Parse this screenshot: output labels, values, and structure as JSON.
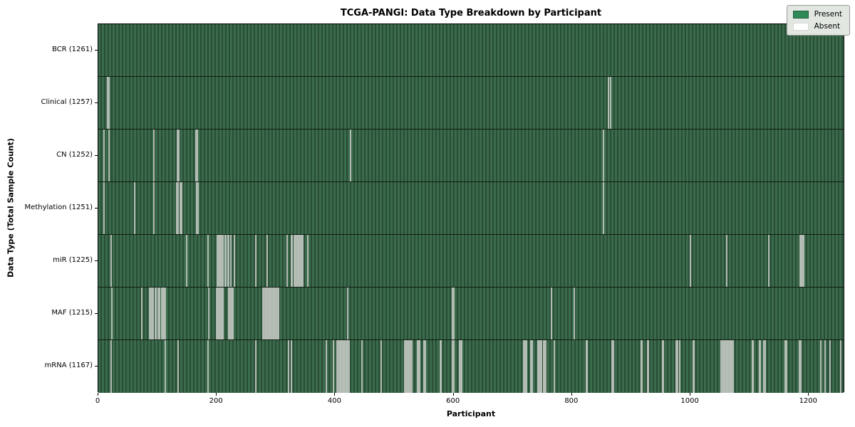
{
  "figure": {
    "title": "TCGA-PANGI: Data Type Breakdown by Participant",
    "xlabel": "Participant",
    "ylabel": "Data Type (Total Sample Count)"
  },
  "legend": {
    "present_label": "Present",
    "absent_label": "Absent",
    "present_color": "#2e8b57",
    "absent_color": "#ffffff"
  },
  "chart_data": {
    "type": "heatmap",
    "title": "TCGA-PANGI: Data Type Breakdown by Participant",
    "xlabel": "Participant",
    "ylabel": "Data Type (Total Sample Count)",
    "x_range": [
      0,
      1261
    ],
    "x_ticks": [
      0,
      200,
      400,
      600,
      800,
      1000,
      1200
    ],
    "total_participants": 1261,
    "grid": false,
    "legend_position": "upper right",
    "present_color": "#2e8b57",
    "absent_color": "#ffffff",
    "rows": [
      {
        "label": "BCR (1261)",
        "name": "BCR",
        "present_count": 1261,
        "absent_count": 0,
        "absent_positions": []
      },
      {
        "label": "Clinical (1257)",
        "name": "Clinical",
        "present_count": 1257,
        "absent_count": 4,
        "absent_positions": [
          15,
          17,
          862,
          865
        ]
      },
      {
        "label": "CN (1252)",
        "name": "CN",
        "present_count": 1252,
        "absent_count": 9,
        "absent_positions": [
          8,
          17,
          93,
          133,
          135,
          164,
          166,
          426,
          854
        ]
      },
      {
        "label": "Methylation (1251)",
        "name": "Methylation",
        "present_count": 1251,
        "absent_count": 10,
        "absent_positions": [
          8,
          60,
          93,
          132,
          134,
          138,
          140,
          165,
          167,
          854
        ]
      },
      {
        "label": "miR (1225)",
        "name": "miR",
        "present_count": 1225,
        "absent_count": 36,
        "absent_positions": [
          20,
          148,
          184,
          200,
          202,
          204,
          206,
          208,
          210,
          213,
          215,
          218,
          220,
          223,
          229,
          265,
          285,
          318,
          325,
          327,
          330,
          332,
          334,
          336,
          339,
          341,
          343,
          345,
          353,
          1001,
          1062,
          1133,
          1186,
          1188,
          1190,
          1192
        ]
      },
      {
        "label": "MAF (1215)",
        "name": "MAF",
        "present_count": 1215,
        "absent_count": 46,
        "absent_positions": [
          22,
          72,
          86,
          88,
          90,
          92,
          95,
          97,
          100,
          102,
          106,
          108,
          110,
          112,
          186,
          199,
          201,
          203,
          205,
          207,
          208,
          210,
          219,
          221,
          223,
          225,
          227,
          277,
          279,
          281,
          283,
          285,
          287,
          289,
          291,
          293,
          295,
          297,
          299,
          301,
          304,
          421,
          598,
          600,
          766,
          804
        ]
      },
      {
        "label": "mRNA (1167)",
        "name": "mRNA",
        "present_count": 1167,
        "absent_count": 94,
        "absent_positions": [
          20,
          112,
          134,
          184,
          265,
          321,
          325,
          385,
          397,
          403,
          405,
          407,
          409,
          411,
          413,
          415,
          417,
          419,
          421,
          423,
          445,
          477,
          517,
          519,
          521,
          523,
          525,
          527,
          529,
          539,
          541,
          543,
          550,
          552,
          577,
          579,
          598,
          600,
          610,
          612,
          614,
          719,
          721,
          723,
          731,
          733,
          743,
          745,
          747,
          749,
          752,
          754,
          756,
          770,
          824,
          826,
          868,
          870,
          917,
          919,
          928,
          930,
          953,
          955,
          977,
          979,
          983,
          1005,
          1007,
          1053,
          1055,
          1057,
          1059,
          1061,
          1063,
          1065,
          1067,
          1069,
          1071,
          1073,
          1105,
          1107,
          1117,
          1119,
          1125,
          1127,
          1161,
          1163,
          1185,
          1187,
          1221,
          1229,
          1237,
          1255
        ]
      }
    ]
  }
}
